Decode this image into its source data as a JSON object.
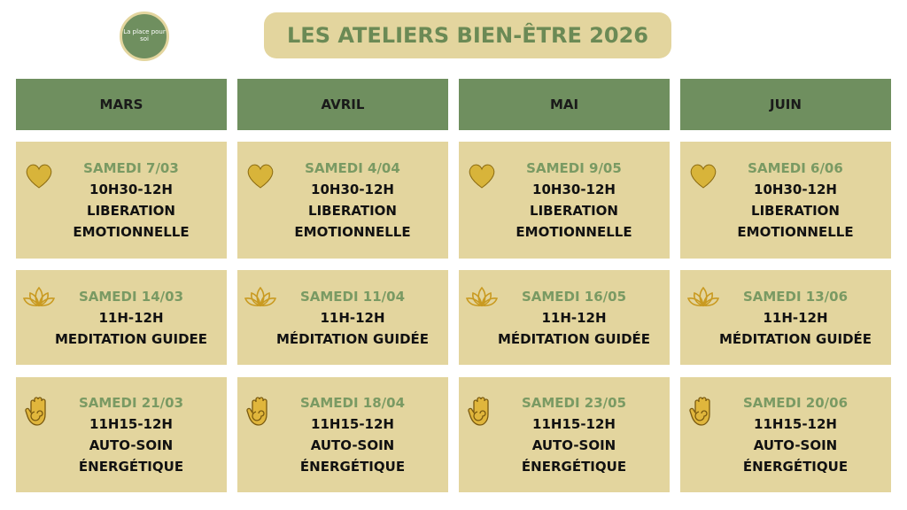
{
  "header": {
    "logo": "La place pour soi",
    "title": "LES ATELIERS BIEN-ÊTRE 2026"
  },
  "table": {
    "columns": [
      "MARS",
      "AVRIL",
      "MAI",
      "JUIN"
    ],
    "rows": [
      [
        {
          "date": "SAMEDI 7/03",
          "time": "10H30-12H",
          "activity": [
            "LIBERATION",
            "EMOTIONNELLE"
          ]
        },
        {
          "date": "SAMEDI 4/04",
          "time": "10H30-12H",
          "activity": [
            "LIBERATION",
            "EMOTIONNELLE"
          ]
        },
        {
          "date": "SAMEDI 9/05",
          "time": "10H30-12H",
          "activity": [
            "LIBERATION",
            "EMOTIONNELLE"
          ]
        },
        {
          "date": "SAMEDI 6/06",
          "time": "10H30-12H",
          "activity": [
            "LIBERATION",
            "EMOTIONNELLE"
          ]
        }
      ],
      [
        {
          "date": "SAMEDI 14/03",
          "time": "11H-12H",
          "activity": [
            "MEDITATION GUIDEE"
          ]
        },
        {
          "date": "SAMEDI 11/04",
          "time": "11H-12H",
          "activity": [
            "MÉDITATION GUIDÉE"
          ]
        },
        {
          "date": "SAMEDI 16/05",
          "time": "11H-12H",
          "activity": [
            "MÉDITATION GUIDÉE"
          ]
        },
        {
          "date": "SAMEDI 13/06",
          "time": "11H-12H",
          "activity": [
            "MÉDITATION GUIDÉE"
          ]
        }
      ],
      [
        {
          "date": "SAMEDI 21/03",
          "time": "11H15-12H",
          "activity": [
            "AUTO-SOIN",
            "ÉNERGÉTIQUE"
          ]
        },
        {
          "date": "SAMEDI 18/04",
          "time": "11H15-12H",
          "activity": [
            "AUTO-SOIN",
            "ÉNERGÉTIQUE"
          ]
        },
        {
          "date": "SAMEDI 23/05",
          "time": "11H15-12H",
          "activity": [
            "AUTO-SOIN",
            "ÉNERGÉTIQUE"
          ]
        },
        {
          "date": "SAMEDI 20/06",
          "time": "11H15-12H",
          "activity": [
            "AUTO-SOIN",
            "ÉNERGÉTIQUE"
          ]
        }
      ]
    ]
  }
}
